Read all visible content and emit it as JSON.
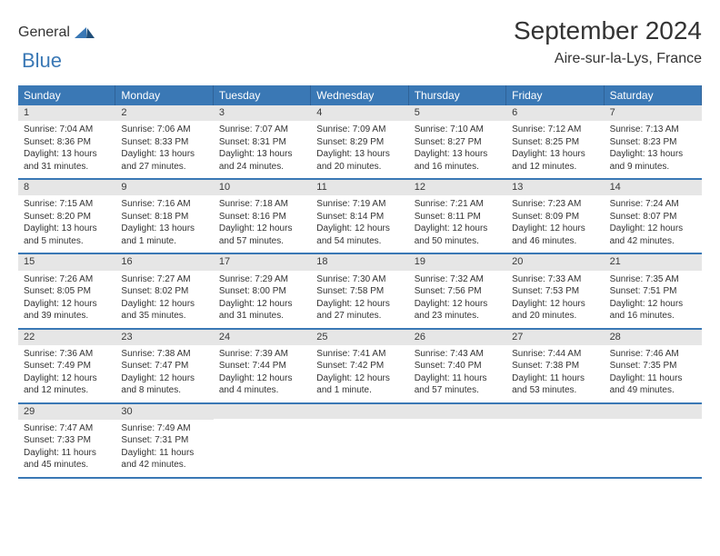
{
  "brand": {
    "text_main": "General",
    "text_blue": "Blue"
  },
  "title": {
    "month": "September 2024",
    "location": "Aire-sur-la-Lys, France"
  },
  "colors": {
    "header_bar": "#3a78b5",
    "day_band": "#e6e6e6",
    "week_divider": "#3a78b5",
    "text": "#333333",
    "background": "#ffffff"
  },
  "weekdays": [
    "Sunday",
    "Monday",
    "Tuesday",
    "Wednesday",
    "Thursday",
    "Friday",
    "Saturday"
  ],
  "weeks": [
    [
      {
        "n": "1",
        "sr": "Sunrise: 7:04 AM",
        "ss": "Sunset: 8:36 PM",
        "d1": "Daylight: 13 hours",
        "d2": "and 31 minutes."
      },
      {
        "n": "2",
        "sr": "Sunrise: 7:06 AM",
        "ss": "Sunset: 8:33 PM",
        "d1": "Daylight: 13 hours",
        "d2": "and 27 minutes."
      },
      {
        "n": "3",
        "sr": "Sunrise: 7:07 AM",
        "ss": "Sunset: 8:31 PM",
        "d1": "Daylight: 13 hours",
        "d2": "and 24 minutes."
      },
      {
        "n": "4",
        "sr": "Sunrise: 7:09 AM",
        "ss": "Sunset: 8:29 PM",
        "d1": "Daylight: 13 hours",
        "d2": "and 20 minutes."
      },
      {
        "n": "5",
        "sr": "Sunrise: 7:10 AM",
        "ss": "Sunset: 8:27 PM",
        "d1": "Daylight: 13 hours",
        "d2": "and 16 minutes."
      },
      {
        "n": "6",
        "sr": "Sunrise: 7:12 AM",
        "ss": "Sunset: 8:25 PM",
        "d1": "Daylight: 13 hours",
        "d2": "and 12 minutes."
      },
      {
        "n": "7",
        "sr": "Sunrise: 7:13 AM",
        "ss": "Sunset: 8:23 PM",
        "d1": "Daylight: 13 hours",
        "d2": "and 9 minutes."
      }
    ],
    [
      {
        "n": "8",
        "sr": "Sunrise: 7:15 AM",
        "ss": "Sunset: 8:20 PM",
        "d1": "Daylight: 13 hours",
        "d2": "and 5 minutes."
      },
      {
        "n": "9",
        "sr": "Sunrise: 7:16 AM",
        "ss": "Sunset: 8:18 PM",
        "d1": "Daylight: 13 hours",
        "d2": "and 1 minute."
      },
      {
        "n": "10",
        "sr": "Sunrise: 7:18 AM",
        "ss": "Sunset: 8:16 PM",
        "d1": "Daylight: 12 hours",
        "d2": "and 57 minutes."
      },
      {
        "n": "11",
        "sr": "Sunrise: 7:19 AM",
        "ss": "Sunset: 8:14 PM",
        "d1": "Daylight: 12 hours",
        "d2": "and 54 minutes."
      },
      {
        "n": "12",
        "sr": "Sunrise: 7:21 AM",
        "ss": "Sunset: 8:11 PM",
        "d1": "Daylight: 12 hours",
        "d2": "and 50 minutes."
      },
      {
        "n": "13",
        "sr": "Sunrise: 7:23 AM",
        "ss": "Sunset: 8:09 PM",
        "d1": "Daylight: 12 hours",
        "d2": "and 46 minutes."
      },
      {
        "n": "14",
        "sr": "Sunrise: 7:24 AM",
        "ss": "Sunset: 8:07 PM",
        "d1": "Daylight: 12 hours",
        "d2": "and 42 minutes."
      }
    ],
    [
      {
        "n": "15",
        "sr": "Sunrise: 7:26 AM",
        "ss": "Sunset: 8:05 PM",
        "d1": "Daylight: 12 hours",
        "d2": "and 39 minutes."
      },
      {
        "n": "16",
        "sr": "Sunrise: 7:27 AM",
        "ss": "Sunset: 8:02 PM",
        "d1": "Daylight: 12 hours",
        "d2": "and 35 minutes."
      },
      {
        "n": "17",
        "sr": "Sunrise: 7:29 AM",
        "ss": "Sunset: 8:00 PM",
        "d1": "Daylight: 12 hours",
        "d2": "and 31 minutes."
      },
      {
        "n": "18",
        "sr": "Sunrise: 7:30 AM",
        "ss": "Sunset: 7:58 PM",
        "d1": "Daylight: 12 hours",
        "d2": "and 27 minutes."
      },
      {
        "n": "19",
        "sr": "Sunrise: 7:32 AM",
        "ss": "Sunset: 7:56 PM",
        "d1": "Daylight: 12 hours",
        "d2": "and 23 minutes."
      },
      {
        "n": "20",
        "sr": "Sunrise: 7:33 AM",
        "ss": "Sunset: 7:53 PM",
        "d1": "Daylight: 12 hours",
        "d2": "and 20 minutes."
      },
      {
        "n": "21",
        "sr": "Sunrise: 7:35 AM",
        "ss": "Sunset: 7:51 PM",
        "d1": "Daylight: 12 hours",
        "d2": "and 16 minutes."
      }
    ],
    [
      {
        "n": "22",
        "sr": "Sunrise: 7:36 AM",
        "ss": "Sunset: 7:49 PM",
        "d1": "Daylight: 12 hours",
        "d2": "and 12 minutes."
      },
      {
        "n": "23",
        "sr": "Sunrise: 7:38 AM",
        "ss": "Sunset: 7:47 PM",
        "d1": "Daylight: 12 hours",
        "d2": "and 8 minutes."
      },
      {
        "n": "24",
        "sr": "Sunrise: 7:39 AM",
        "ss": "Sunset: 7:44 PM",
        "d1": "Daylight: 12 hours",
        "d2": "and 4 minutes."
      },
      {
        "n": "25",
        "sr": "Sunrise: 7:41 AM",
        "ss": "Sunset: 7:42 PM",
        "d1": "Daylight: 12 hours",
        "d2": "and 1 minute."
      },
      {
        "n": "26",
        "sr": "Sunrise: 7:43 AM",
        "ss": "Sunset: 7:40 PM",
        "d1": "Daylight: 11 hours",
        "d2": "and 57 minutes."
      },
      {
        "n": "27",
        "sr": "Sunrise: 7:44 AM",
        "ss": "Sunset: 7:38 PM",
        "d1": "Daylight: 11 hours",
        "d2": "and 53 minutes."
      },
      {
        "n": "28",
        "sr": "Sunrise: 7:46 AM",
        "ss": "Sunset: 7:35 PM",
        "d1": "Daylight: 11 hours",
        "d2": "and 49 minutes."
      }
    ],
    [
      {
        "n": "29",
        "sr": "Sunrise: 7:47 AM",
        "ss": "Sunset: 7:33 PM",
        "d1": "Daylight: 11 hours",
        "d2": "and 45 minutes."
      },
      {
        "n": "30",
        "sr": "Sunrise: 7:49 AM",
        "ss": "Sunset: 7:31 PM",
        "d1": "Daylight: 11 hours",
        "d2": "and 42 minutes."
      },
      null,
      null,
      null,
      null,
      null
    ]
  ]
}
